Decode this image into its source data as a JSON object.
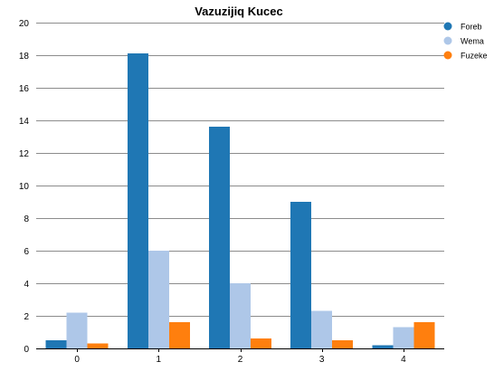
{
  "chart_data": {
    "type": "bar",
    "title": "Vazuzijiq Kucec",
    "xlabel": "",
    "ylabel": "",
    "categories": [
      "0",
      "1",
      "2",
      "3",
      "4"
    ],
    "series": [
      {
        "name": "Foreb",
        "color": "#1f77b4",
        "values": [
          0.5,
          18.1,
          13.6,
          9.0,
          0.2
        ]
      },
      {
        "name": "Wema",
        "color": "#aec7e8",
        "values": [
          2.2,
          6.0,
          4.0,
          2.3,
          1.3
        ]
      },
      {
        "name": "Fuzeke",
        "color": "#ff7f0e",
        "values": [
          0.3,
          1.6,
          0.6,
          0.5,
          1.6
        ]
      }
    ],
    "ylim": [
      0,
      20
    ],
    "yticks": [
      0,
      2,
      4,
      6,
      8,
      10,
      12,
      14,
      16,
      18,
      20
    ],
    "grid": true,
    "legend_position": "top-right"
  }
}
